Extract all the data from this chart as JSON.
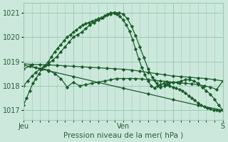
{
  "background_color": "#cce8dc",
  "plot_bg_color": "#cce8dc",
  "grid_color": "#99ccb3",
  "line_color": "#1a5c2a",
  "ylim": [
    1016.6,
    1021.4
  ],
  "yticks": [
    1017,
    1018,
    1019,
    1020,
    1021
  ],
  "xlabel": "Pression niveau de la mer( hPa )",
  "xtick_labels": [
    "Jeu",
    "",
    "Ven",
    "",
    "S"
  ],
  "xtick_positions": [
    0,
    48,
    96,
    144,
    192
  ],
  "total_points": 192,
  "series": [
    {
      "x": [
        0,
        3,
        6,
        9,
        12,
        15,
        18,
        21,
        24,
        27,
        30,
        33,
        36,
        39,
        42,
        45,
        48,
        51,
        54,
        57,
        60,
        63,
        66,
        69,
        72,
        75,
        78,
        81,
        84,
        87,
        90,
        93,
        96,
        99,
        102,
        105,
        108,
        111,
        114,
        117,
        120,
        123,
        126,
        129,
        132,
        135,
        138,
        141,
        144,
        147,
        150,
        153,
        156,
        159,
        162,
        165,
        168,
        171,
        174,
        177,
        180,
        183,
        186,
        189,
        192
      ],
      "y": [
        1017.2,
        1017.5,
        1017.8,
        1018.1,
        1018.3,
        1018.5,
        1018.7,
        1018.85,
        1019.0,
        1019.2,
        1019.4,
        1019.55,
        1019.7,
        1019.85,
        1020.0,
        1020.1,
        1020.2,
        1020.3,
        1020.4,
        1020.5,
        1020.55,
        1020.6,
        1020.65,
        1020.7,
        1020.75,
        1020.8,
        1020.87,
        1020.93,
        1021.0,
        1021.0,
        1020.95,
        1020.85,
        1020.7,
        1020.5,
        1020.25,
        1019.9,
        1019.5,
        1019.1,
        1018.75,
        1018.45,
        1018.2,
        1018.0,
        1017.9,
        1018.0,
        1018.05,
        1018.1,
        1018.05,
        1018.0,
        1017.95,
        1017.9,
        1017.85,
        1017.8,
        1017.7,
        1017.6,
        1017.5,
        1017.4,
        1017.3,
        1017.2,
        1017.15,
        1017.1,
        1017.05,
        1017.0,
        1017.0,
        1016.97,
        1017.0
      ]
    },
    {
      "x": [
        0,
        4,
        8,
        12,
        16,
        20,
        24,
        28,
        32,
        36,
        40,
        44,
        48,
        52,
        56,
        60,
        64,
        68,
        72,
        76,
        80,
        84,
        88,
        92,
        96,
        100,
        104,
        108,
        112,
        116,
        120,
        124,
        128,
        132,
        136,
        140,
        144,
        148,
        152,
        156,
        160,
        164,
        168,
        172,
        176,
        180,
        184,
        188,
        192
      ],
      "y": [
        1018.0,
        1018.2,
        1018.4,
        1018.55,
        1018.7,
        1018.8,
        1018.9,
        1019.05,
        1019.2,
        1019.4,
        1019.6,
        1019.8,
        1020.0,
        1020.1,
        1020.2,
        1020.35,
        1020.5,
        1020.6,
        1020.7,
        1020.8,
        1020.9,
        1020.95,
        1021.0,
        1021.0,
        1020.95,
        1020.75,
        1020.45,
        1020.05,
        1019.6,
        1019.15,
        1018.7,
        1018.35,
        1018.1,
        1017.95,
        1018.0,
        1018.1,
        1018.15,
        1018.15,
        1018.2,
        1018.25,
        1018.25,
        1018.2,
        1018.1,
        1017.95,
        1017.8,
        1017.65,
        1017.45,
        1017.2,
        1017.0
      ]
    },
    {
      "x": [
        0,
        6,
        12,
        18,
        24,
        30,
        36,
        42,
        48,
        54,
        60,
        66,
        72,
        78,
        84,
        90,
        96,
        102,
        108,
        114,
        120,
        126,
        132,
        138,
        144,
        150,
        156,
        162,
        168,
        174,
        180,
        186,
        192
      ],
      "y": [
        1018.7,
        1018.8,
        1018.75,
        1018.7,
        1018.65,
        1018.5,
        1018.3,
        1017.95,
        1018.15,
        1018.0,
        1018.05,
        1018.1,
        1018.15,
        1018.2,
        1018.25,
        1018.3,
        1018.3,
        1018.3,
        1018.3,
        1018.28,
        1018.25,
        1018.22,
        1018.2,
        1018.18,
        1018.15,
        1018.12,
        1018.1,
        1018.08,
        1018.05,
        1018.0,
        1017.95,
        1017.85,
        1018.2
      ]
    },
    {
      "x": [
        0,
        8,
        16,
        24,
        32,
        40,
        48,
        56,
        64,
        72,
        80,
        88,
        96,
        104,
        112,
        120,
        128,
        136,
        144,
        152,
        160,
        168,
        176,
        184,
        192
      ],
      "y": [
        1018.9,
        1018.88,
        1018.87,
        1018.86,
        1018.84,
        1018.82,
        1018.8,
        1018.78,
        1018.76,
        1018.74,
        1018.72,
        1018.7,
        1018.68,
        1018.65,
        1018.6,
        1018.55,
        1018.5,
        1018.45,
        1018.4,
        1018.38,
        1018.35,
        1018.32,
        1018.3,
        1018.25,
        1018.2
      ]
    },
    {
      "x": [
        0,
        24,
        48,
        72,
        96,
        120,
        144,
        168,
        192
      ],
      "y": [
        1018.85,
        1018.62,
        1018.38,
        1018.14,
        1017.9,
        1017.67,
        1017.43,
        1017.2,
        1017.0
      ]
    }
  ]
}
